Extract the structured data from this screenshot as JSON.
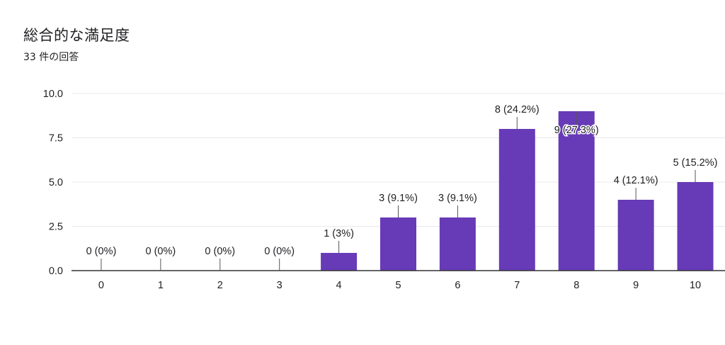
{
  "title": "総合的な満足度",
  "subtitle": "33 件の回答",
  "colors": {
    "bar": "#673ab7",
    "grid": "#e8e8e8",
    "axis": "#333333",
    "leader": "#555555"
  },
  "chart_data": {
    "type": "bar",
    "categories": [
      "0",
      "1",
      "2",
      "3",
      "4",
      "5",
      "6",
      "7",
      "8",
      "9",
      "10"
    ],
    "values": [
      0,
      0,
      0,
      0,
      1,
      3,
      3,
      8,
      9,
      4,
      5
    ],
    "data_labels": [
      "0 (0%)",
      "0 (0%)",
      "0 (0%)",
      "0 (0%)",
      "1 (3%)",
      "3 (9.1%)",
      "3 (9.1%)",
      "8 (24.2%)",
      "9 (27.3%)",
      "4 (12.1%)",
      "5 (15.2%)"
    ],
    "y_ticks": [
      "0.0",
      "2.5",
      "5.0",
      "7.5",
      "10.0"
    ],
    "ylim": [
      0,
      10
    ],
    "grid": true,
    "legend": "none"
  }
}
